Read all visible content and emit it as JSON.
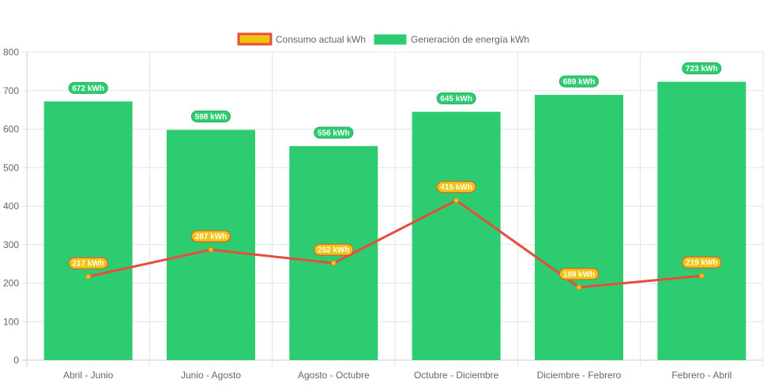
{
  "chart_data": {
    "type": "bar",
    "title": "",
    "xlabel": "",
    "ylabel": "",
    "ylim": [
      0,
      800
    ],
    "yticks": [
      0,
      100,
      200,
      300,
      400,
      500,
      600,
      700,
      800
    ],
    "grid": true,
    "legend_position": "top",
    "categories": [
      "Abril - Junio",
      "Junio - Agosto",
      "Agosto - Octubre",
      "Octubre - Diciembre",
      "Diciembre - Febrero",
      "Febrero - Abril"
    ],
    "series": [
      {
        "name": "Consumo actual kWh",
        "type": "line",
        "color": "#e74c3c",
        "fill": "#f1c40f",
        "values": [
          217,
          287,
          252,
          415,
          189,
          219
        ]
      },
      {
        "name": "Generación de energía kWh",
        "type": "bar",
        "color": "#2ecc71",
        "values": [
          672,
          598,
          556,
          645,
          689,
          723
        ]
      }
    ],
    "label_unit": "kWh"
  }
}
